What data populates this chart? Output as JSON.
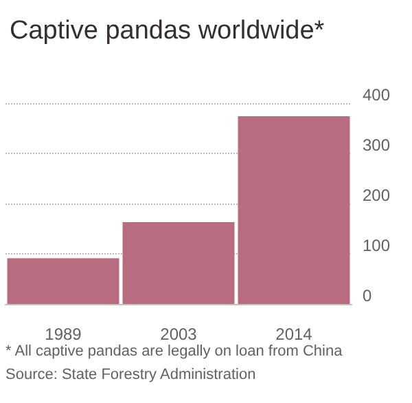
{
  "chart_data": {
    "type": "bar",
    "title": "Captive pandas worldwide*",
    "categories": [
      "1989",
      "2003",
      "2014"
    ],
    "values": [
      91,
      163,
      374
    ],
    "color": "#b96b7f",
    "ylim": [
      0,
      400
    ],
    "yticks": [
      0,
      100,
      200,
      300,
      400
    ],
    "grid": "y",
    "annotations": [
      "* All captive pandas are legally on loan from China",
      "Source: State Forestry Administration"
    ]
  }
}
